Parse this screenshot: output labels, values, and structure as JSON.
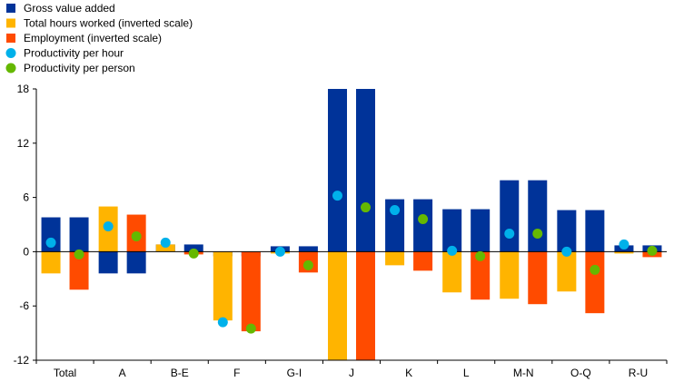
{
  "chart_data": {
    "type": "bar",
    "categories": [
      "Total",
      "A",
      "B-E",
      "F",
      "G-I",
      "J",
      "K",
      "L",
      "M-N",
      "O-Q",
      "R-U"
    ],
    "ylim": [
      -12,
      18
    ],
    "yticks": [
      -12,
      -6,
      0,
      6,
      12,
      18
    ],
    "grid": false,
    "legend_position": "top-left",
    "colors": {
      "gross_value_added": "#003399",
      "total_hours": "#FFB400",
      "employment": "#FF4B00",
      "productivity_hour": "#00B1EA",
      "productivity_person": "#65B800"
    },
    "series": [
      {
        "name": "Gross value added",
        "kind": "bar",
        "slot": "both",
        "values": [
          3.8,
          -2.4,
          0.8,
          -0.5,
          0.6,
          18.0,
          5.8,
          4.7,
          7.9,
          4.6,
          0.7
        ]
      },
      {
        "name": "Total hours worked (inverted scale)",
        "kind": "bar",
        "slot": "left",
        "values": [
          -2.4,
          5.0,
          0.8,
          -7.6,
          -0.2,
          -12.0,
          -1.5,
          -4.5,
          -5.2,
          -4.4,
          -0.2
        ]
      },
      {
        "name": "Employment (inverted scale)",
        "kind": "bar",
        "slot": "right",
        "values": [
          -4.2,
          4.1,
          -0.3,
          -8.8,
          -2.3,
          -12.0,
          -2.1,
          -5.3,
          -5.8,
          -6.8,
          -0.6
        ]
      },
      {
        "name": "Productivity per hour",
        "kind": "dot",
        "slot": "left",
        "values": [
          1.0,
          2.8,
          1.0,
          -7.8,
          0.0,
          6.2,
          4.6,
          0.1,
          2.0,
          0.0,
          0.8
        ]
      },
      {
        "name": "Productivity per person",
        "kind": "dot",
        "slot": "right",
        "values": [
          -0.3,
          1.7,
          -0.2,
          -8.5,
          -1.5,
          4.9,
          3.6,
          -0.5,
          2.0,
          -2.0,
          0.1
        ]
      }
    ]
  }
}
